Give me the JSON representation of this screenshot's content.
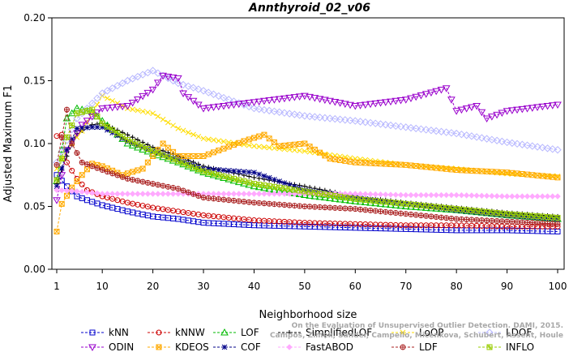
{
  "chart_data": {
    "type": "line",
    "title": "Annthyroid_02_v06",
    "xlabel": "Neighborhood size",
    "ylabel": "Adjusted Maximum F1",
    "xlim": [
      1,
      100
    ],
    "ylim": [
      0,
      0.2
    ],
    "x_ticks": [
      1,
      10,
      20,
      30,
      40,
      50,
      60,
      70,
      80,
      90,
      100
    ],
    "y_ticks": [
      "0.00",
      "0.05",
      "0.10",
      "0.15",
      "0.20"
    ],
    "grid": false,
    "legend_position": "bottom",
    "credit_lines": [
      "Campos, Zimek, Sander, Campello, Micenkova, Schubert, Assent, Houle",
      "On the Evaluation of Unsupervised Outlier Detection. DAMI, 2015."
    ],
    "series": [
      {
        "name": "kNN",
        "color": "#0000cc",
        "marker": "square",
        "points": [
          [
            1,
            0.075
          ],
          [
            3,
            0.066
          ],
          [
            5,
            0.058
          ],
          [
            7,
            0.055
          ],
          [
            10,
            0.051
          ],
          [
            15,
            0.046
          ],
          [
            20,
            0.042
          ],
          [
            25,
            0.04
          ],
          [
            30,
            0.037
          ],
          [
            40,
            0.035
          ],
          [
            50,
            0.034
          ],
          [
            60,
            0.033
          ],
          [
            70,
            0.032
          ],
          [
            80,
            0.031
          ],
          [
            90,
            0.031
          ],
          [
            100,
            0.03
          ]
        ]
      },
      {
        "name": "kNNW",
        "color": "#cc0000",
        "marker": "circle",
        "points": [
          [
            1,
            0.106
          ],
          [
            2,
            0.107
          ],
          [
            3,
            0.085
          ],
          [
            5,
            0.072
          ],
          [
            7,
            0.063
          ],
          [
            10,
            0.058
          ],
          [
            15,
            0.053
          ],
          [
            20,
            0.049
          ],
          [
            25,
            0.046
          ],
          [
            30,
            0.043
          ],
          [
            40,
            0.039
          ],
          [
            50,
            0.037
          ],
          [
            60,
            0.036
          ],
          [
            70,
            0.035
          ],
          [
            80,
            0.035
          ],
          [
            90,
            0.034
          ],
          [
            100,
            0.034
          ]
        ]
      },
      {
        "name": "LOF",
        "color": "#00bb00",
        "marker": "triangle-up",
        "points": [
          [
            1,
            0.07
          ],
          [
            3,
            0.12
          ],
          [
            5,
            0.128
          ],
          [
            8,
            0.125
          ],
          [
            10,
            0.118
          ],
          [
            15,
            0.1
          ],
          [
            20,
            0.092
          ],
          [
            25,
            0.085
          ],
          [
            30,
            0.077
          ],
          [
            40,
            0.066
          ],
          [
            50,
            0.059
          ],
          [
            60,
            0.054
          ],
          [
            70,
            0.05
          ],
          [
            80,
            0.047
          ],
          [
            90,
            0.043
          ],
          [
            100,
            0.04
          ]
        ]
      },
      {
        "name": "SimplifiedLOF",
        "color": "#000000",
        "marker": "plus",
        "points": [
          [
            1,
            0.068
          ],
          [
            3,
            0.09
          ],
          [
            5,
            0.108
          ],
          [
            8,
            0.115
          ],
          [
            10,
            0.116
          ],
          [
            15,
            0.107
          ],
          [
            20,
            0.097
          ],
          [
            25,
            0.09
          ],
          [
            30,
            0.082
          ],
          [
            40,
            0.073
          ],
          [
            50,
            0.066
          ],
          [
            60,
            0.058
          ],
          [
            70,
            0.053
          ],
          [
            80,
            0.049
          ],
          [
            90,
            0.045
          ],
          [
            100,
            0.042
          ]
        ]
      },
      {
        "name": "LoOP",
        "color": "#ffdd00",
        "marker": "x",
        "points": [
          [
            1,
            0.08
          ],
          [
            3,
            0.095
          ],
          [
            6,
            0.11
          ],
          [
            10,
            0.138
          ],
          [
            15,
            0.128
          ],
          [
            20,
            0.124
          ],
          [
            25,
            0.112
          ],
          [
            30,
            0.104
          ],
          [
            40,
            0.098
          ],
          [
            50,
            0.094
          ],
          [
            60,
            0.088
          ],
          [
            70,
            0.083
          ],
          [
            80,
            0.08
          ],
          [
            90,
            0.076
          ],
          [
            100,
            0.074
          ]
        ]
      },
      {
        "name": "LDOF",
        "color": "#b8b8ff",
        "marker": "diamond",
        "points": [
          [
            1,
            0.085
          ],
          [
            5,
            0.12
          ],
          [
            10,
            0.14
          ],
          [
            15,
            0.15
          ],
          [
            20,
            0.158
          ],
          [
            25,
            0.148
          ],
          [
            30,
            0.142
          ],
          [
            40,
            0.128
          ],
          [
            50,
            0.122
          ],
          [
            60,
            0.118
          ],
          [
            70,
            0.113
          ],
          [
            80,
            0.108
          ],
          [
            90,
            0.101
          ],
          [
            100,
            0.095
          ]
        ]
      },
      {
        "name": "ODIN",
        "color": "#9900cc",
        "marker": "triangle-down",
        "points": [
          [
            1,
            0.055
          ],
          [
            3,
            0.095
          ],
          [
            6,
            0.115
          ],
          [
            10,
            0.128
          ],
          [
            15,
            0.13
          ],
          [
            20,
            0.143
          ],
          [
            22,
            0.154
          ],
          [
            25,
            0.152
          ],
          [
            26,
            0.14
          ],
          [
            30,
            0.128
          ],
          [
            40,
            0.133
          ],
          [
            50,
            0.138
          ],
          [
            60,
            0.13
          ],
          [
            70,
            0.135
          ],
          [
            78,
            0.144
          ],
          [
            80,
            0.126
          ],
          [
            84,
            0.13
          ],
          [
            86,
            0.12
          ],
          [
            90,
            0.126
          ],
          [
            100,
            0.131
          ]
        ]
      },
      {
        "name": "KDEOS",
        "color": "#ffaa00",
        "marker": "box-x",
        "points": [
          [
            1,
            0.03
          ],
          [
            2,
            0.052
          ],
          [
            4,
            0.065
          ],
          [
            6,
            0.075
          ],
          [
            8,
            0.084
          ],
          [
            10,
            0.082
          ],
          [
            14,
            0.075
          ],
          [
            18,
            0.08
          ],
          [
            22,
            0.1
          ],
          [
            25,
            0.09
          ],
          [
            30,
            0.09
          ],
          [
            38,
            0.102
          ],
          [
            42,
            0.107
          ],
          [
            45,
            0.098
          ],
          [
            50,
            0.1
          ],
          [
            55,
            0.088
          ],
          [
            60,
            0.085
          ],
          [
            70,
            0.083
          ],
          [
            80,
            0.079
          ],
          [
            90,
            0.077
          ],
          [
            100,
            0.073
          ]
        ]
      },
      {
        "name": "COF",
        "color": "#000088",
        "marker": "star",
        "points": [
          [
            1,
            0.066
          ],
          [
            3,
            0.095
          ],
          [
            5,
            0.112
          ],
          [
            8,
            0.113
          ],
          [
            10,
            0.113
          ],
          [
            15,
            0.102
          ],
          [
            20,
            0.094
          ],
          [
            25,
            0.087
          ],
          [
            30,
            0.08
          ],
          [
            40,
            0.077
          ],
          [
            50,
            0.063
          ],
          [
            60,
            0.057
          ],
          [
            70,
            0.052
          ],
          [
            80,
            0.047
          ],
          [
            90,
            0.043
          ],
          [
            100,
            0.04
          ]
        ]
      },
      {
        "name": "FastABOD",
        "color": "#ffaaff",
        "marker": "diamond-filled",
        "points": [
          [
            1,
            0.063
          ],
          [
            5,
            0.062
          ],
          [
            10,
            0.06
          ],
          [
            20,
            0.06
          ],
          [
            30,
            0.06
          ],
          [
            40,
            0.06
          ],
          [
            50,
            0.06
          ],
          [
            60,
            0.06
          ],
          [
            70,
            0.059
          ],
          [
            80,
            0.059
          ],
          [
            90,
            0.058
          ],
          [
            100,
            0.058
          ]
        ]
      },
      {
        "name": "LDF",
        "color": "#aa2222",
        "marker": "circle-plus",
        "points": [
          [
            1,
            0.083
          ],
          [
            3,
            0.127
          ],
          [
            4,
            0.1
          ],
          [
            6,
            0.085
          ],
          [
            10,
            0.079
          ],
          [
            15,
            0.072
          ],
          [
            20,
            0.068
          ],
          [
            25,
            0.064
          ],
          [
            30,
            0.057
          ],
          [
            40,
            0.053
          ],
          [
            50,
            0.05
          ],
          [
            60,
            0.048
          ],
          [
            70,
            0.044
          ],
          [
            80,
            0.04
          ],
          [
            90,
            0.038
          ],
          [
            100,
            0.036
          ]
        ]
      },
      {
        "name": "INFLO",
        "color": "#99cc00",
        "marker": "box-star",
        "points": [
          [
            1,
            0.071
          ],
          [
            3,
            0.105
          ],
          [
            5,
            0.124
          ],
          [
            8,
            0.127
          ],
          [
            10,
            0.116
          ],
          [
            15,
            0.103
          ],
          [
            20,
            0.094
          ],
          [
            25,
            0.086
          ],
          [
            30,
            0.078
          ],
          [
            40,
            0.068
          ],
          [
            50,
            0.062
          ],
          [
            60,
            0.056
          ],
          [
            70,
            0.052
          ],
          [
            80,
            0.048
          ],
          [
            90,
            0.044
          ],
          [
            100,
            0.041
          ]
        ]
      }
    ],
    "legend_rows": [
      [
        "kNN",
        "kNNW",
        "LOF",
        "SimplifiedLOF",
        "LoOP",
        "LDOF"
      ],
      [
        "ODIN",
        "KDEOS",
        "COF",
        "FastABOD",
        "LDF",
        "INFLO"
      ]
    ]
  }
}
